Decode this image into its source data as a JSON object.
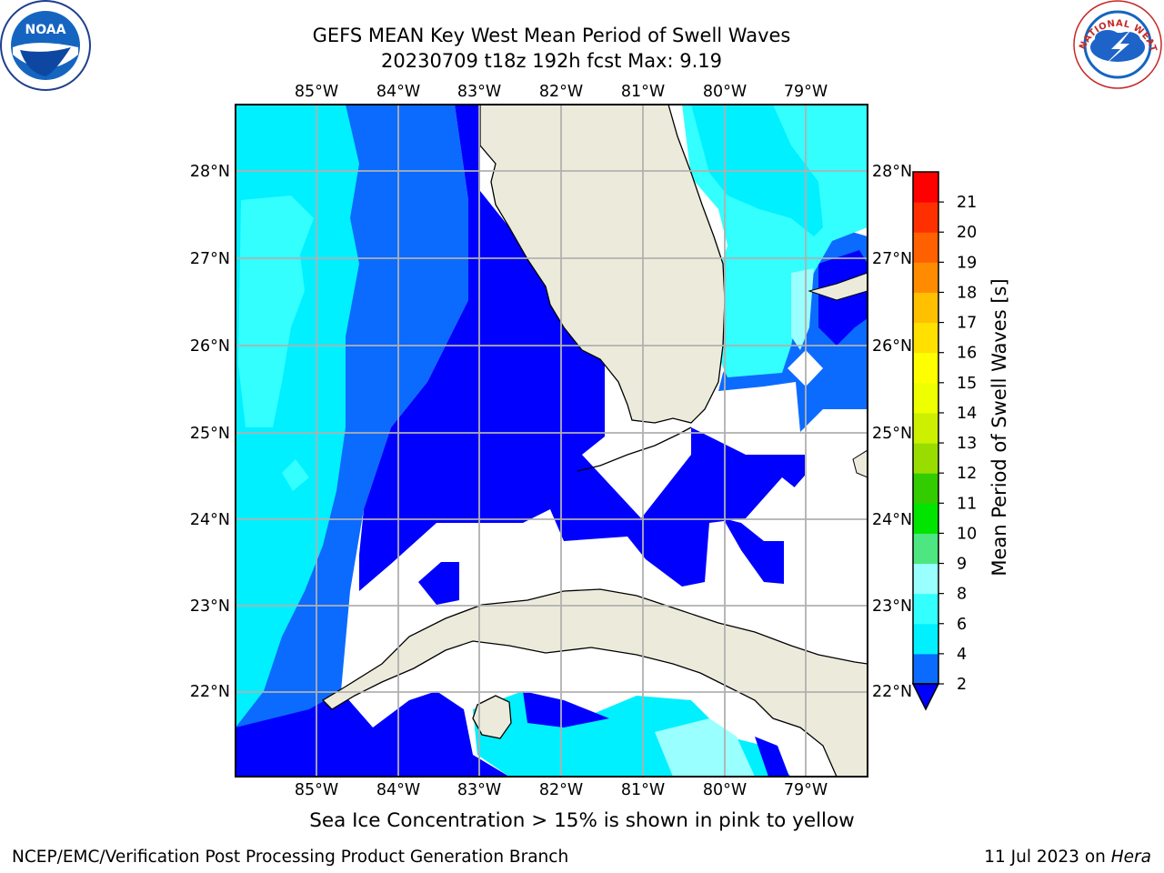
{
  "title_line1": "GEFS MEAN Key West Mean Period of Swell Waves",
  "title_line2": "20230709 t18z 192h fcst   Max: 9.19",
  "subtitle": "Sea Ice Concentration > 15% is shown in pink to yellow",
  "footer": {
    "left": "NCEP/EMC/Verification Post Processing Product Generation Branch",
    "date": "11 Jul 2023 on ",
    "machine": "Hera"
  },
  "logos": {
    "left": "NOAA",
    "right": "NATIONAL WEATHER SERVICE"
  },
  "axes": {
    "lon_ticks": [
      "85°W",
      "84°W",
      "83°W",
      "82°W",
      "81°W",
      "80°W",
      "79°W"
    ],
    "lat_ticks": [
      "22°N",
      "23°N",
      "24°N",
      "25°N",
      "26°N",
      "27°N",
      "28°N"
    ]
  },
  "colorbar": {
    "label": "Mean Period of Swell Waves [s]",
    "ticks": [
      "2",
      "4",
      "6",
      "8",
      "9",
      "10",
      "11",
      "12",
      "13",
      "14",
      "15",
      "16",
      "17",
      "18",
      "19",
      "20",
      "21"
    ],
    "colors": [
      "#0b6bff",
      "#00f0ff",
      "#33ffff",
      "#99ffff",
      "#4de680",
      "#00e400",
      "#33cc00",
      "#99dd00",
      "#ccf000",
      "#eeff00",
      "#ffff00",
      "#ffe000",
      "#ffc000",
      "#ff8c00",
      "#ff6000",
      "#ff3000",
      "#ff0000"
    ],
    "extend_color": "#0000ff"
  },
  "colors": {
    "land": "#ecebdb",
    "deep_blue": "#0000ff",
    "blue": "#0b6bff",
    "cyan": "#00f0ff",
    "light_cyan": "#33ffff",
    "pale_cyan": "#99ffff",
    "grid": "#b0b0b0"
  }
}
